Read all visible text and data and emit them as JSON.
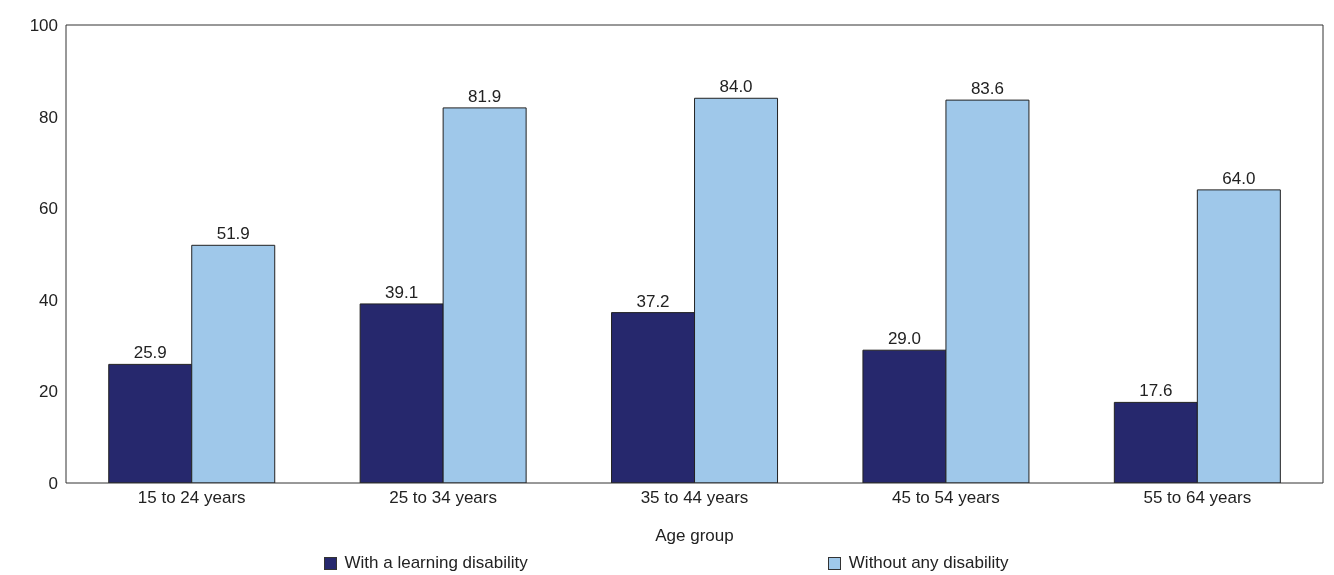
{
  "chart_data": {
    "type": "bar",
    "xlabel": "Age group",
    "categories": [
      "15 to 24 years",
      "25 to 34 years",
      "35 to 44 years",
      "45 to 54 years",
      "55 to 64 years"
    ],
    "series": [
      {
        "name": "With a learning disability",
        "color": "#26286d",
        "values": [
          25.9,
          39.1,
          37.2,
          29.0,
          17.6
        ],
        "value_labels": [
          "25.9",
          "39.1",
          "37.2",
          "29.0",
          "17.6"
        ]
      },
      {
        "name": "Without any disability",
        "color": "#9fc8ea",
        "values": [
          51.9,
          81.9,
          84.0,
          83.6,
          64.0
        ],
        "value_labels": [
          "51.9",
          "81.9",
          "84.0",
          "83.6",
          "64.0"
        ]
      }
    ],
    "ylim": [
      0,
      100
    ],
    "yticks": [
      0,
      20,
      40,
      60,
      80,
      100
    ],
    "grid": false,
    "legend": "bottom"
  }
}
